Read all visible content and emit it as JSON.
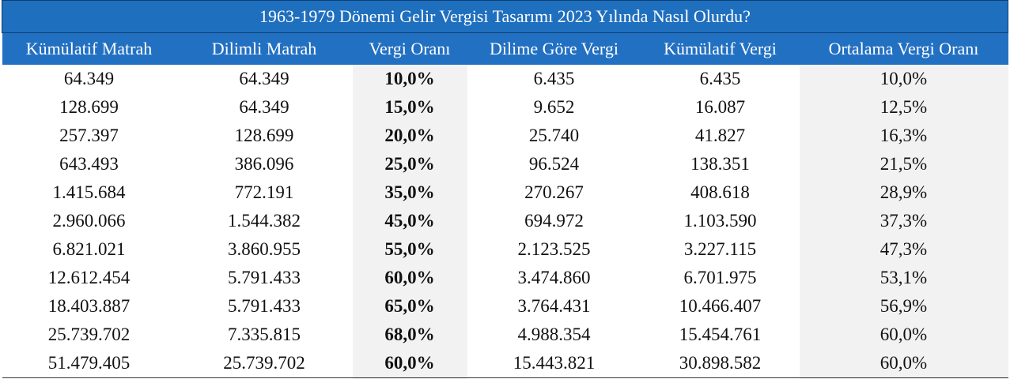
{
  "table": {
    "title": "1963-1979 Dönemi Gelir Vergisi Tasarımı 2023 Yılında Nasıl Olurdu?",
    "columns": [
      "Kümülatif Matrah",
      "Dilimli Matrah",
      "Vergi Oranı",
      "Dilime Göre Vergi",
      "Kümülatif Vergi",
      "Ortalama Vergi Oranı"
    ],
    "rows": [
      [
        "64.349",
        "64.349",
        "10,0%",
        "6.435",
        "6.435",
        "10,0%"
      ],
      [
        "128.699",
        "64.349",
        "15,0%",
        "9.652",
        "16.087",
        "12,5%"
      ],
      [
        "257.397",
        "128.699",
        "20,0%",
        "25.740",
        "41.827",
        "16,3%"
      ],
      [
        "643.493",
        "386.096",
        "25,0%",
        "96.524",
        "138.351",
        "21,5%"
      ],
      [
        "1.415.684",
        "772.191",
        "35,0%",
        "270.267",
        "408.618",
        "28,9%"
      ],
      [
        "2.960.066",
        "1.544.382",
        "45,0%",
        "694.972",
        "1.103.590",
        "37,3%"
      ],
      [
        "6.821.021",
        "3.860.955",
        "55,0%",
        "2.123.525",
        "3.227.115",
        "47,3%"
      ],
      [
        "12.612.454",
        "5.791.433",
        "60,0%",
        "3.474.860",
        "6.701.975",
        "53,1%"
      ],
      [
        "18.403.887",
        "5.791.433",
        "65,0%",
        "3.764.431",
        "10.466.407",
        "56,9%"
      ],
      [
        "25.739.702",
        "7.335.815",
        "68,0%",
        "4.988.354",
        "15.454.761",
        "60,0%"
      ],
      [
        "51.479.405",
        "25.739.702",
        "60,0%",
        "15.443.821",
        "30.898.582",
        "60,0%"
      ]
    ]
  }
}
